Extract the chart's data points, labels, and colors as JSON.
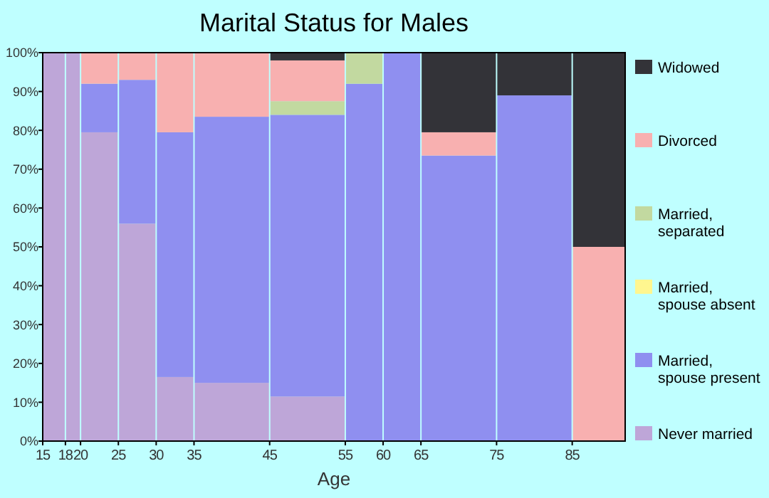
{
  "chart_data": {
    "type": "bar",
    "stacked": true,
    "title": "Marital Status for Males",
    "xlabel": "Age",
    "x": [
      16.5,
      19,
      22.5,
      27.5,
      32.5,
      40,
      50,
      57.5,
      62.5,
      70,
      80,
      88.5
    ],
    "xlim": [
      15,
      92
    ],
    "xticks": [
      15,
      18,
      20,
      25,
      30,
      35,
      45,
      55,
      60,
      65,
      75,
      85
    ],
    "ylim": [
      0,
      100
    ],
    "yticks": [
      {
        "value": 0,
        "label": "0%"
      },
      {
        "value": 10,
        "label": "10%"
      },
      {
        "value": 20,
        "label": "20%"
      },
      {
        "value": 30,
        "label": "30%"
      },
      {
        "value": 40,
        "label": "40%"
      },
      {
        "value": 50,
        "label": "50%"
      },
      {
        "value": 60,
        "label": "60%"
      },
      {
        "value": 70,
        "label": "70%"
      },
      {
        "value": 80,
        "label": "80%"
      },
      {
        "value": 90,
        "label": "90%"
      },
      {
        "value": 100,
        "label": "100%"
      }
    ],
    "legend": "right",
    "grid": false,
    "series": [
      {
        "name": "Never married",
        "color": "#bea6d8",
        "values": [
          100,
          100,
          79.5,
          56,
          16.5,
          15,
          11.5,
          0,
          0,
          0,
          0,
          0
        ]
      },
      {
        "name": "Married, spouse present",
        "color": "#8f8ff0",
        "values": [
          0,
          0,
          12.5,
          37,
          63,
          68.5,
          72.5,
          92,
          100,
          73.5,
          89,
          0
        ]
      },
      {
        "name": "Married, spouse absent",
        "color": "#fff68f",
        "values": [
          0,
          0,
          0,
          0,
          0,
          0,
          0,
          0,
          0,
          0,
          0,
          0
        ]
      },
      {
        "name": "Married, separated",
        "color": "#c2d9a0",
        "values": [
          0,
          0,
          0,
          0,
          0,
          0,
          3.5,
          8,
          0,
          0,
          0,
          0
        ]
      },
      {
        "name": "Divorced",
        "color": "#f8b0b0",
        "values": [
          0,
          0,
          8,
          7,
          20.5,
          16.5,
          10.5,
          0,
          0,
          6,
          0,
          50
        ]
      },
      {
        "name": "Widowed",
        "color": "#333338",
        "values": [
          0,
          0,
          0,
          0,
          0,
          0,
          2,
          0,
          0,
          20.5,
          11,
          50
        ]
      }
    ]
  }
}
